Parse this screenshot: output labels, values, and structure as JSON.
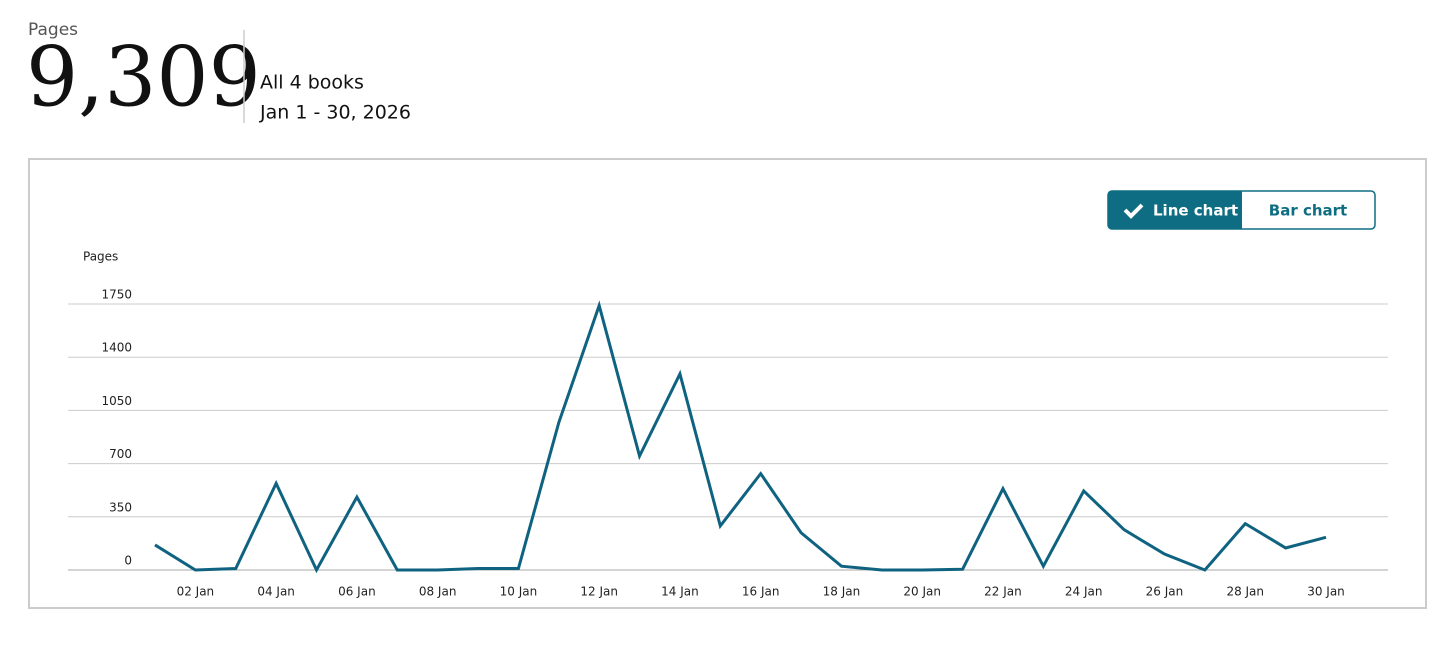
{
  "header": {
    "label": "Pages",
    "total": "9,309",
    "scope": "All 4 books",
    "period": "Jan 1 - 30, 2026"
  },
  "toggle": {
    "options": [
      "Line chart",
      "Bar chart"
    ],
    "selected": 0
  },
  "chart_data": {
    "type": "line",
    "y_label": "Pages",
    "categories": [
      null,
      "02 Jan",
      null,
      "04 Jan",
      null,
      "06 Jan",
      null,
      "08 Jan",
      null,
      "10 Jan",
      null,
      "12 Jan",
      null,
      "14 Jan",
      null,
      "16 Jan",
      null,
      "18 Jan",
      null,
      "20 Jan",
      null,
      "22 Jan",
      null,
      "24 Jan",
      null,
      "26 Jan",
      null,
      "28 Jan",
      null,
      "30 Jan"
    ],
    "series": [
      {
        "name": "Pages",
        "color": "#0f6380",
        "values": [
          165,
          0,
          10,
          570,
          0,
          480,
          0,
          0,
          10,
          10,
          970,
          1740,
          750,
          1290,
          290,
          634,
          245,
          25,
          0,
          0,
          5,
          535,
          25,
          520,
          265,
          105,
          0,
          305,
          145,
          215
        ]
      }
    ],
    "ylim": [
      0,
      1750
    ],
    "yticks": [
      0,
      350,
      700,
      1050,
      1400,
      1750
    ],
    "grid": true
  }
}
